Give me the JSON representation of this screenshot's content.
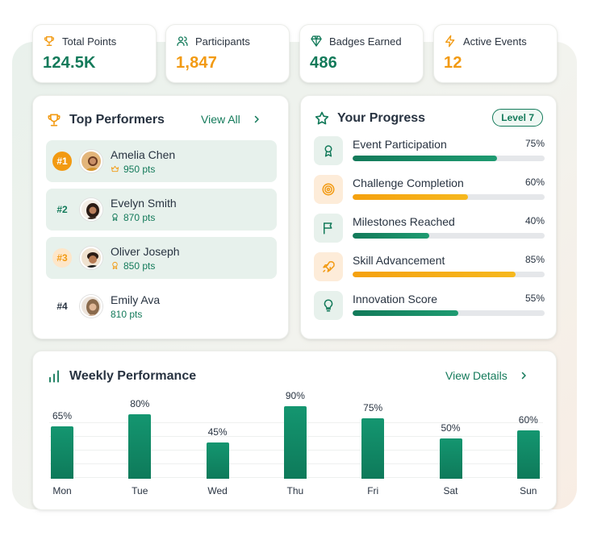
{
  "stats": [
    {
      "label": "Total Points",
      "value": "124.5K",
      "icon": "trophy-icon",
      "color": "green"
    },
    {
      "label": "Participants",
      "value": "1,847",
      "icon": "users-icon",
      "color": "orange"
    },
    {
      "label": "Badges Earned",
      "value": "486",
      "icon": "badge-icon",
      "color": "green"
    },
    {
      "label": "Active Events",
      "value": "12",
      "icon": "lightning-icon",
      "color": "orange"
    }
  ],
  "top_performers": {
    "title": "Top Performers",
    "link": "View All",
    "items": [
      {
        "rank": "#1",
        "name": "Amelia Chen",
        "points": "950 pts",
        "points_icon": "crown-icon"
      },
      {
        "rank": "#2",
        "name": "Evelyn Smith",
        "points": "870 pts",
        "points_icon": "badge-icon"
      },
      {
        "rank": "#3",
        "name": "Oliver Joseph",
        "points": "850 pts",
        "points_icon": "badge-icon"
      },
      {
        "rank": "#4",
        "name": "Emily Ava",
        "points": "810 pts",
        "points_icon": ""
      }
    ]
  },
  "progress": {
    "title": "Your Progress",
    "level": "Level 7",
    "items": [
      {
        "name": "Event Participation",
        "value": "75%",
        "fraction": 0.75,
        "icon": "award-icon",
        "tone": "g"
      },
      {
        "name": "Challenge Completion",
        "value": "60%",
        "fraction": 0.6,
        "icon": "target-icon",
        "tone": "o"
      },
      {
        "name": "Milestones Reached",
        "value": "40%",
        "fraction": 0.4,
        "icon": "flag-icon",
        "tone": "g"
      },
      {
        "name": "Skill Advancement",
        "value": "85%",
        "fraction": 0.85,
        "icon": "rocket-icon",
        "tone": "o"
      },
      {
        "name": "Innovation Score",
        "value": "55%",
        "fraction": 0.55,
        "icon": "lightbulb-icon",
        "tone": "g"
      }
    ]
  },
  "weekly": {
    "title": "Weekly Performance",
    "link": "View Details"
  },
  "chart_data": {
    "type": "bar",
    "categories": [
      "Mon",
      "Tue",
      "Wed",
      "Thu",
      "Fri",
      "Sat",
      "Sun"
    ],
    "values": [
      65,
      80,
      45,
      90,
      75,
      50,
      60
    ],
    "value_labels": [
      "65%",
      "80%",
      "45%",
      "90%",
      "75%",
      "50%",
      "60%"
    ],
    "ylim": [
      0,
      100
    ],
    "grid": true
  },
  "colors": {
    "accent": "#137a5a",
    "secondary": "#f29a12"
  }
}
